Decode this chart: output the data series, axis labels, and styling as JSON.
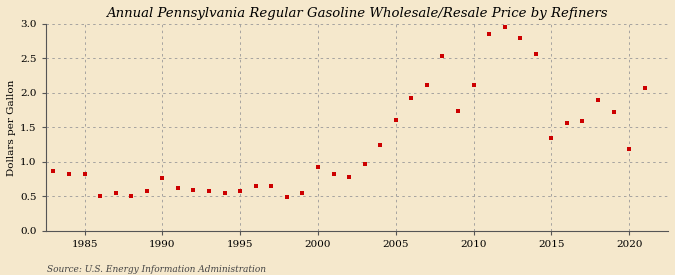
{
  "title": "Annual Pennsylvania Regular Gasoline Wholesale/Resale Price by Refiners",
  "ylabel": "Dollars per Gallon",
  "source": "Source: U.S. Energy Information Administration",
  "background_color": "#f5e8cc",
  "marker_color": "#cc0000",
  "xlim": [
    1982.5,
    2022.5
  ],
  "ylim": [
    0.0,
    3.0
  ],
  "yticks": [
    0.0,
    0.5,
    1.0,
    1.5,
    2.0,
    2.5,
    3.0
  ],
  "xticks": [
    1985,
    1990,
    1995,
    2000,
    2005,
    2010,
    2015,
    2020
  ],
  "years": [
    1983,
    1984,
    1985,
    1986,
    1987,
    1988,
    1989,
    1990,
    1991,
    1992,
    1993,
    1994,
    1995,
    1996,
    1997,
    1998,
    1999,
    2000,
    2001,
    2002,
    2003,
    2004,
    2005,
    2006,
    2007,
    2008,
    2009,
    2010,
    2011,
    2012,
    2013,
    2014,
    2015,
    2016,
    2017,
    2018,
    2019,
    2020,
    2021
  ],
  "values": [
    0.87,
    0.82,
    0.82,
    0.5,
    0.55,
    0.5,
    0.58,
    0.77,
    0.62,
    0.59,
    0.57,
    0.55,
    0.58,
    0.65,
    0.65,
    0.49,
    0.55,
    0.93,
    0.83,
    0.78,
    0.97,
    1.25,
    1.61,
    1.92,
    2.12,
    2.54,
    1.73,
    2.12,
    2.86,
    2.96,
    2.8,
    2.57,
    1.35,
    1.57,
    1.59,
    1.9,
    1.72,
    1.19,
    2.07
  ],
  "title_fontsize": 9.5,
  "ylabel_fontsize": 7.5,
  "tick_fontsize": 7.5,
  "source_fontsize": 6.5,
  "marker_size": 10
}
